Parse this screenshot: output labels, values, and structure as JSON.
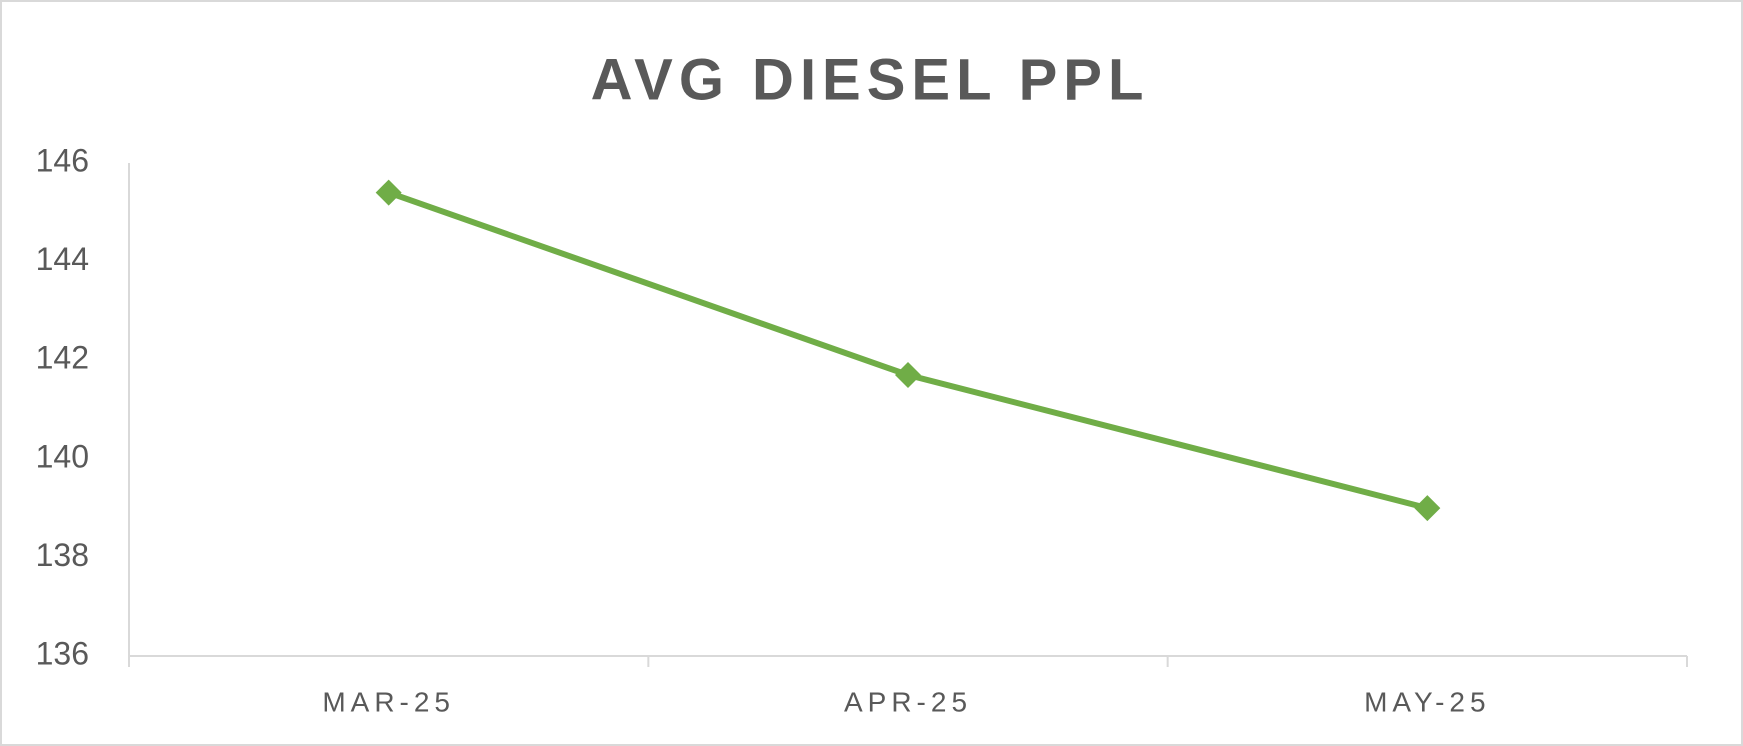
{
  "chart_data": {
    "type": "line",
    "title": "AVG DIESEL PPL",
    "categories": [
      "MAR-25",
      "APR-25",
      "MAY-25"
    ],
    "series": [
      {
        "name": "Avg Diesel PPL",
        "color": "#70ad47",
        "values": [
          145.4,
          141.7,
          139.0
        ]
      }
    ],
    "ylim": [
      136,
      146
    ],
    "yticks": [
      136,
      138,
      140,
      142,
      144,
      146
    ],
    "grid": false
  }
}
